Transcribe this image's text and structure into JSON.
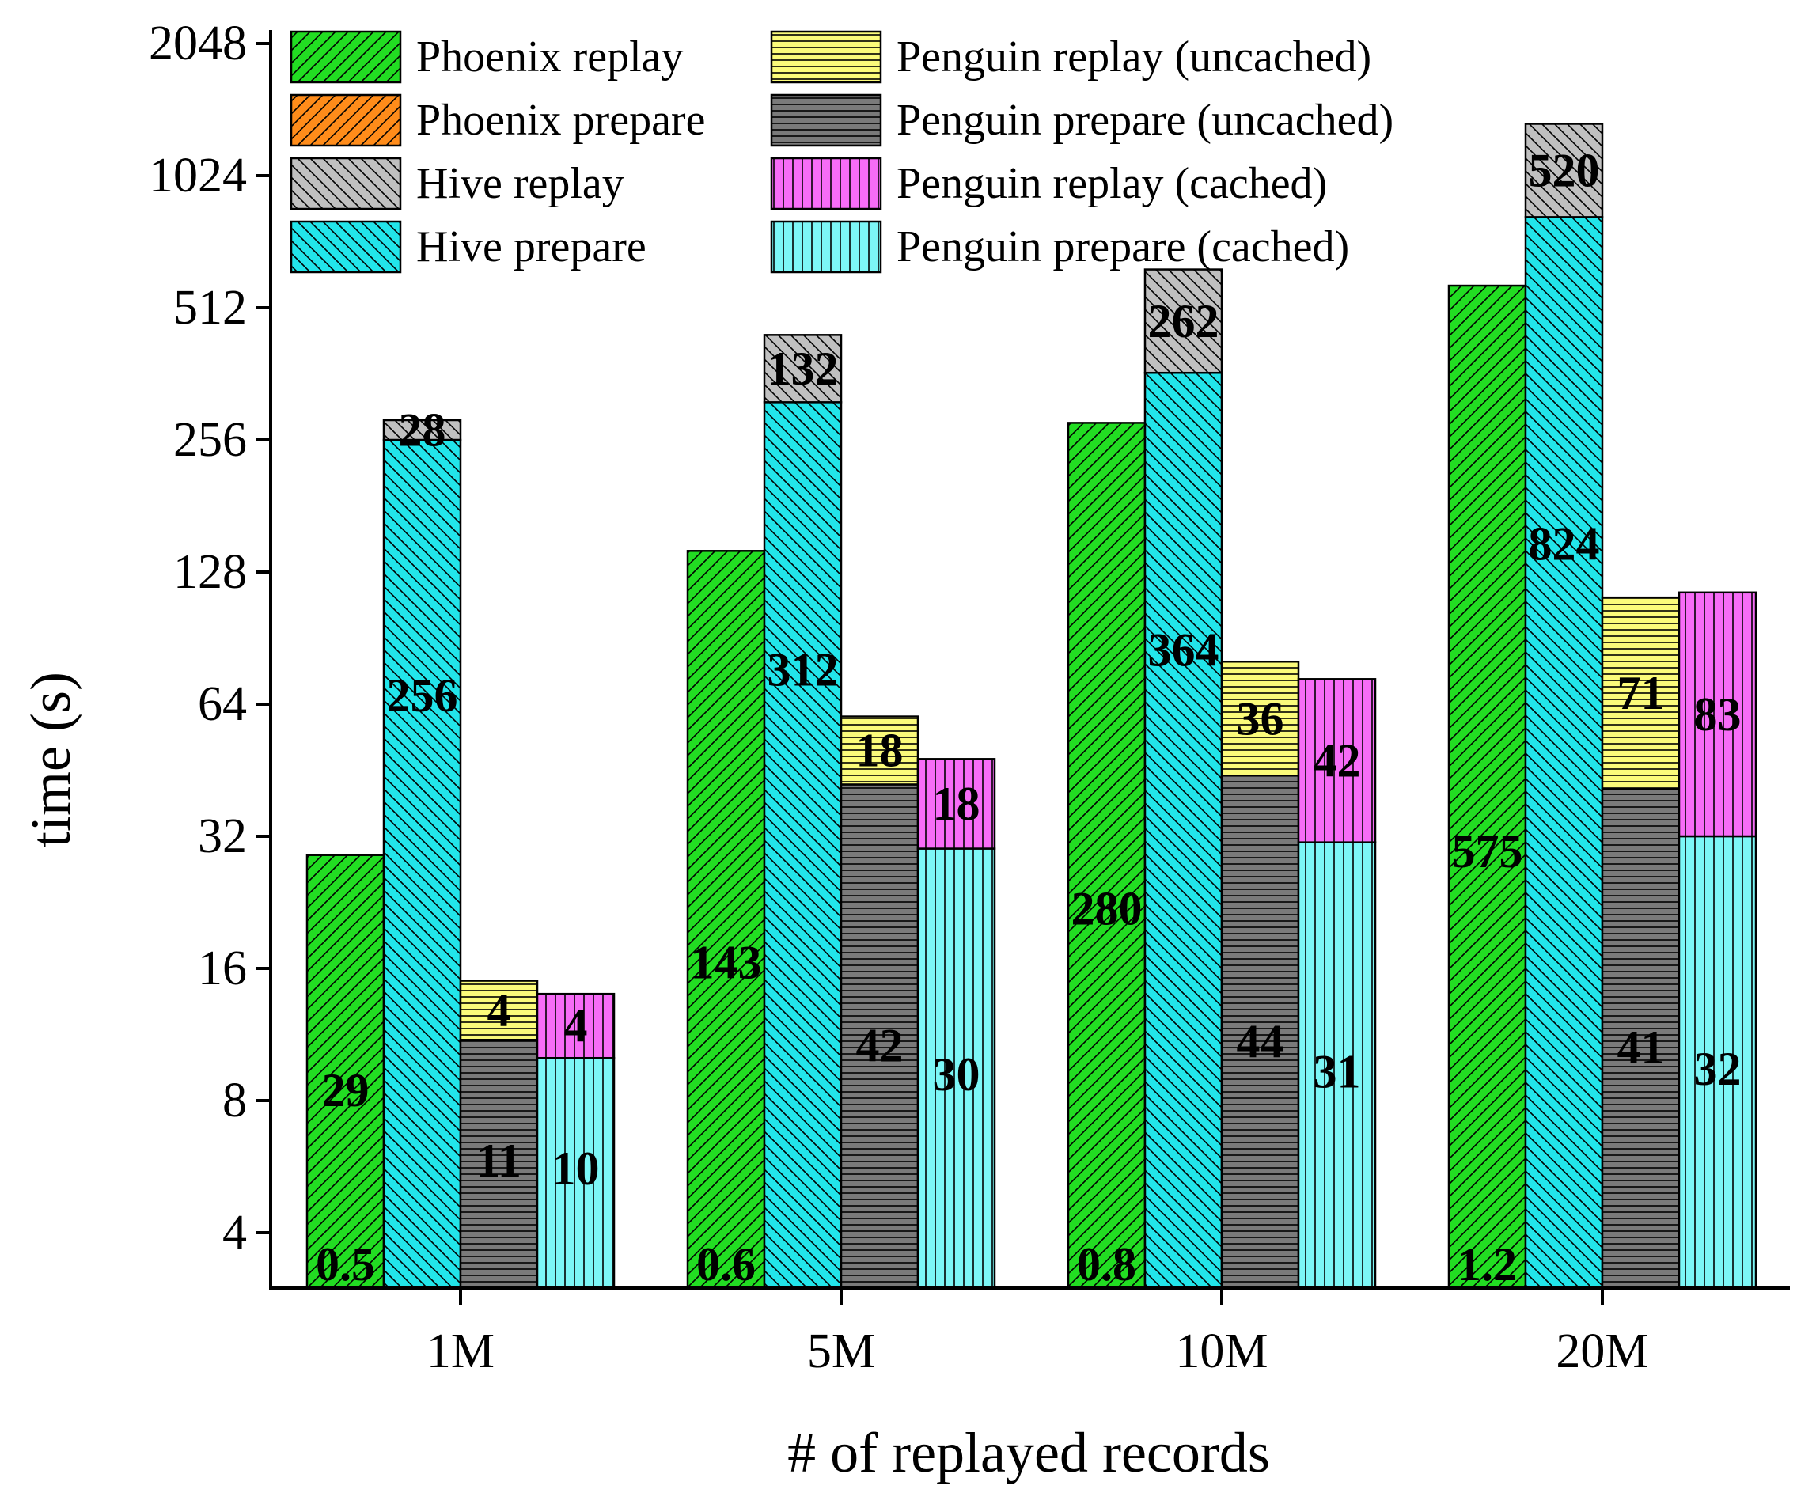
{
  "chart_data": {
    "type": "bar",
    "stacked": true,
    "title": "",
    "xlabel": "# of replayed records",
    "ylabel": "time (s)",
    "yscale": "log2",
    "ylim": [
      3,
      2048
    ],
    "yticks": [
      4,
      8,
      16,
      32,
      64,
      128,
      256,
      512,
      1024,
      2048
    ],
    "ytick_labels": [
      "4",
      "8",
      "16",
      "32",
      "64",
      "128",
      "256",
      "512",
      "1024",
      "2048"
    ],
    "categories": [
      "1M",
      "5M",
      "10M",
      "20M"
    ],
    "legend_position": "top-left",
    "series": [
      {
        "name": "Phoenix replay",
        "group": "Phoenix",
        "color": "#22dd22",
        "pattern": "diag-right",
        "values": [
          29,
          143,
          280,
          575
        ],
        "labels": [
          "29",
          "143",
          "280",
          "575"
        ]
      },
      {
        "name": "Phoenix prepare",
        "group": "Phoenix",
        "color": "#ff8c1a",
        "pattern": "diag-right",
        "values": [
          0.5,
          0.6,
          0.8,
          1.2
        ],
        "labels": [
          "0.5",
          "0.6",
          "0.8",
          "1.2"
        ]
      },
      {
        "name": "Hive replay",
        "group": "Hive",
        "color": "#c0c0c0",
        "pattern": "diag-left",
        "values": [
          28,
          132,
          262,
          520
        ],
        "labels": [
          "28",
          "132",
          "262",
          "520"
        ]
      },
      {
        "name": "Hive prepare",
        "group": "Hive",
        "color": "#22e5ea",
        "pattern": "diag-left",
        "values": [
          256,
          312,
          364,
          824
        ],
        "labels": [
          "256",
          "312",
          "364",
          "824"
        ]
      },
      {
        "name": "Penguin replay (uncached)",
        "group": "Penguin uncached",
        "color": "#fbfb7a",
        "pattern": "horizontal",
        "values": [
          4,
          18,
          36,
          71
        ],
        "labels": [
          "4",
          "18",
          "36",
          "71"
        ]
      },
      {
        "name": "Penguin prepare (uncached)",
        "group": "Penguin uncached",
        "color": "#7a7a7a",
        "pattern": "horizontal",
        "values": [
          11,
          42,
          44,
          41
        ],
        "labels": [
          "11",
          "42",
          "44",
          "41"
        ]
      },
      {
        "name": "Penguin replay (cached)",
        "group": "Penguin cached",
        "color": "#f76cf7",
        "pattern": "vertical",
        "values": [
          4,
          18,
          42,
          83
        ],
        "labels": [
          "4",
          "18",
          "42",
          "83"
        ]
      },
      {
        "name": "Penguin prepare (cached)",
        "group": "Penguin cached",
        "color": "#7cf7f7",
        "pattern": "vertical",
        "values": [
          10,
          30,
          31,
          32
        ],
        "labels": [
          "10",
          "30",
          "31",
          "32"
        ]
      }
    ],
    "legend_order": [
      "Phoenix replay",
      "Phoenix prepare",
      "Hive replay",
      "Hive prepare",
      "Penguin replay (uncached)",
      "Penguin prepare (uncached)",
      "Penguin replay (cached)",
      "Penguin prepare (cached)"
    ]
  }
}
